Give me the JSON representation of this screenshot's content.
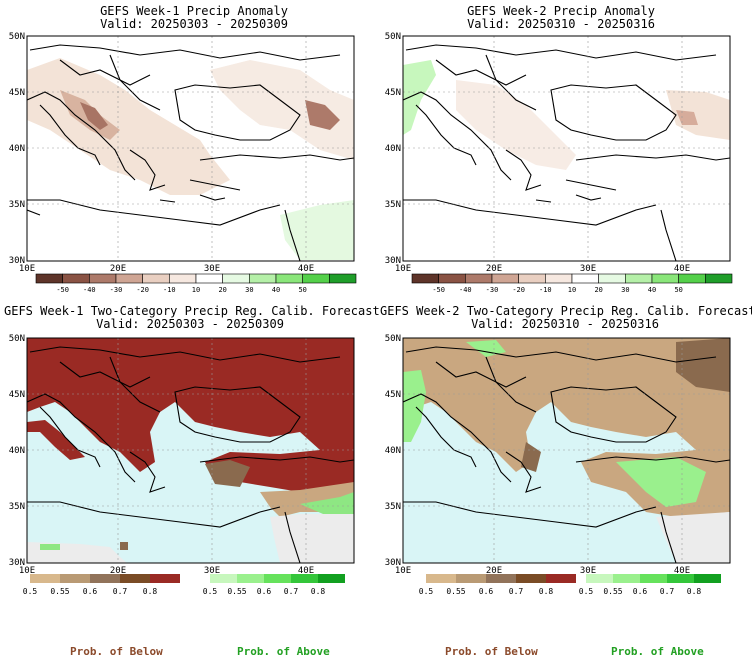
{
  "panels": [
    {
      "id": "p1",
      "title": "GEFS Week-1 Precip Anomaly",
      "valid": "Valid: 20250303 - 20250309"
    },
    {
      "id": "p2",
      "title": "GEFS Week-2 Precip Anomaly",
      "valid": "Valid: 20250310 - 20250316"
    },
    {
      "id": "p3",
      "title": "GEFS Week-1 Two-Category Precip Reg. Calib. Forecast",
      "valid": "Valid: 20250303 - 20250309"
    },
    {
      "id": "p4",
      "title": "GEFS Week-2 Two-Category Precip Reg. Calib. Forecast",
      "valid": "Valid: 20250310 - 20250316"
    }
  ],
  "lat_labels": [
    "50N",
    "45N",
    "40N",
    "35N",
    "30N"
  ],
  "lon_labels": [
    "10E",
    "20E",
    "30E",
    "40E"
  ],
  "anomaly_colorbar": {
    "labels": [
      "-50",
      "-40",
      "-30",
      "-20",
      "-10",
      "10",
      "20",
      "30",
      "40",
      "50"
    ],
    "colors": [
      "#5e3429",
      "#8a5344",
      "#ad7a6a",
      "#cfa594",
      "#e9cfc1",
      "#f6e8e0",
      "#ffffff",
      "#e6fae3",
      "#b5f0a8",
      "#8ae67a",
      "#54d04a",
      "#1f9e2a"
    ]
  },
  "prob_colorbars": {
    "below_labels": [
      "0.5",
      "0.55",
      "0.6",
      "0.7",
      "0.8"
    ],
    "above_labels": [
      "0.5",
      "0.55",
      "0.6",
      "0.7",
      "0.8"
    ],
    "below_colors": [
      "#d8b88c",
      "#b99a74",
      "#91735a",
      "#7a4c26",
      "#9a2a24"
    ],
    "above_colors": [
      "#c7f7bd",
      "#9af08d",
      "#66e25c",
      "#34c63a",
      "#12a020"
    ]
  },
  "colors": {
    "sea": "#d9f5f6",
    "land_none": "#ececec",
    "coast": "#000000",
    "dry_light": "#f3e3d7",
    "dry_mid": "#e2c1ae",
    "dry_dark": "#a86f5d",
    "wet_light": "#e4f9e0",
    "wet_mid": "#8ee783",
    "below_strong": "#9a2a24",
    "below_mid": "#c9a780",
    "below_dark": "#8a6a4e"
  },
  "footer": {
    "below": "Prob. of Below",
    "above": "Prob. of Above"
  }
}
